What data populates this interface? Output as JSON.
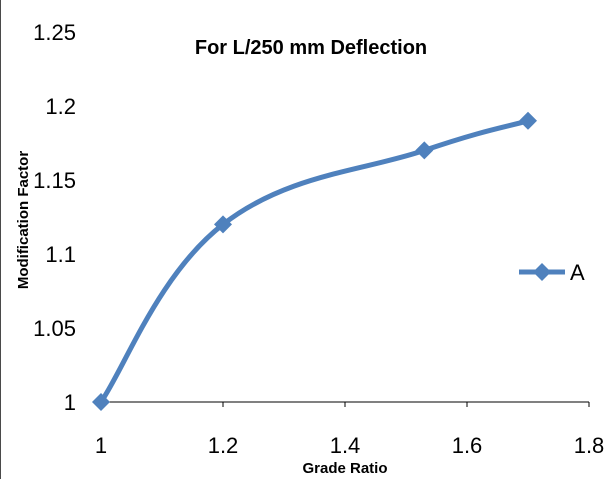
{
  "chart_data": {
    "type": "line",
    "title": "For L/250 mm Deflection",
    "xlabel": "Grade Ratio",
    "ylabel": "Modification Factor",
    "xlim": [
      1,
      1.8
    ],
    "ylim": [
      1,
      1.25
    ],
    "x_ticks": [
      "1",
      "1.2",
      "1.4",
      "1.6",
      "1.8"
    ],
    "y_ticks": [
      "1",
      "1.05",
      "1.1",
      "1.15",
      "1.2",
      "1.25"
    ],
    "series": [
      {
        "name": "A",
        "color": "#4f81bd",
        "marker": "diamond",
        "smooth": true,
        "x": [
          1.0,
          1.2,
          1.53,
          1.7
        ],
        "y": [
          1.0,
          1.12,
          1.17,
          1.19
        ]
      }
    ],
    "legend": {
      "position": "right"
    },
    "grid": false
  }
}
